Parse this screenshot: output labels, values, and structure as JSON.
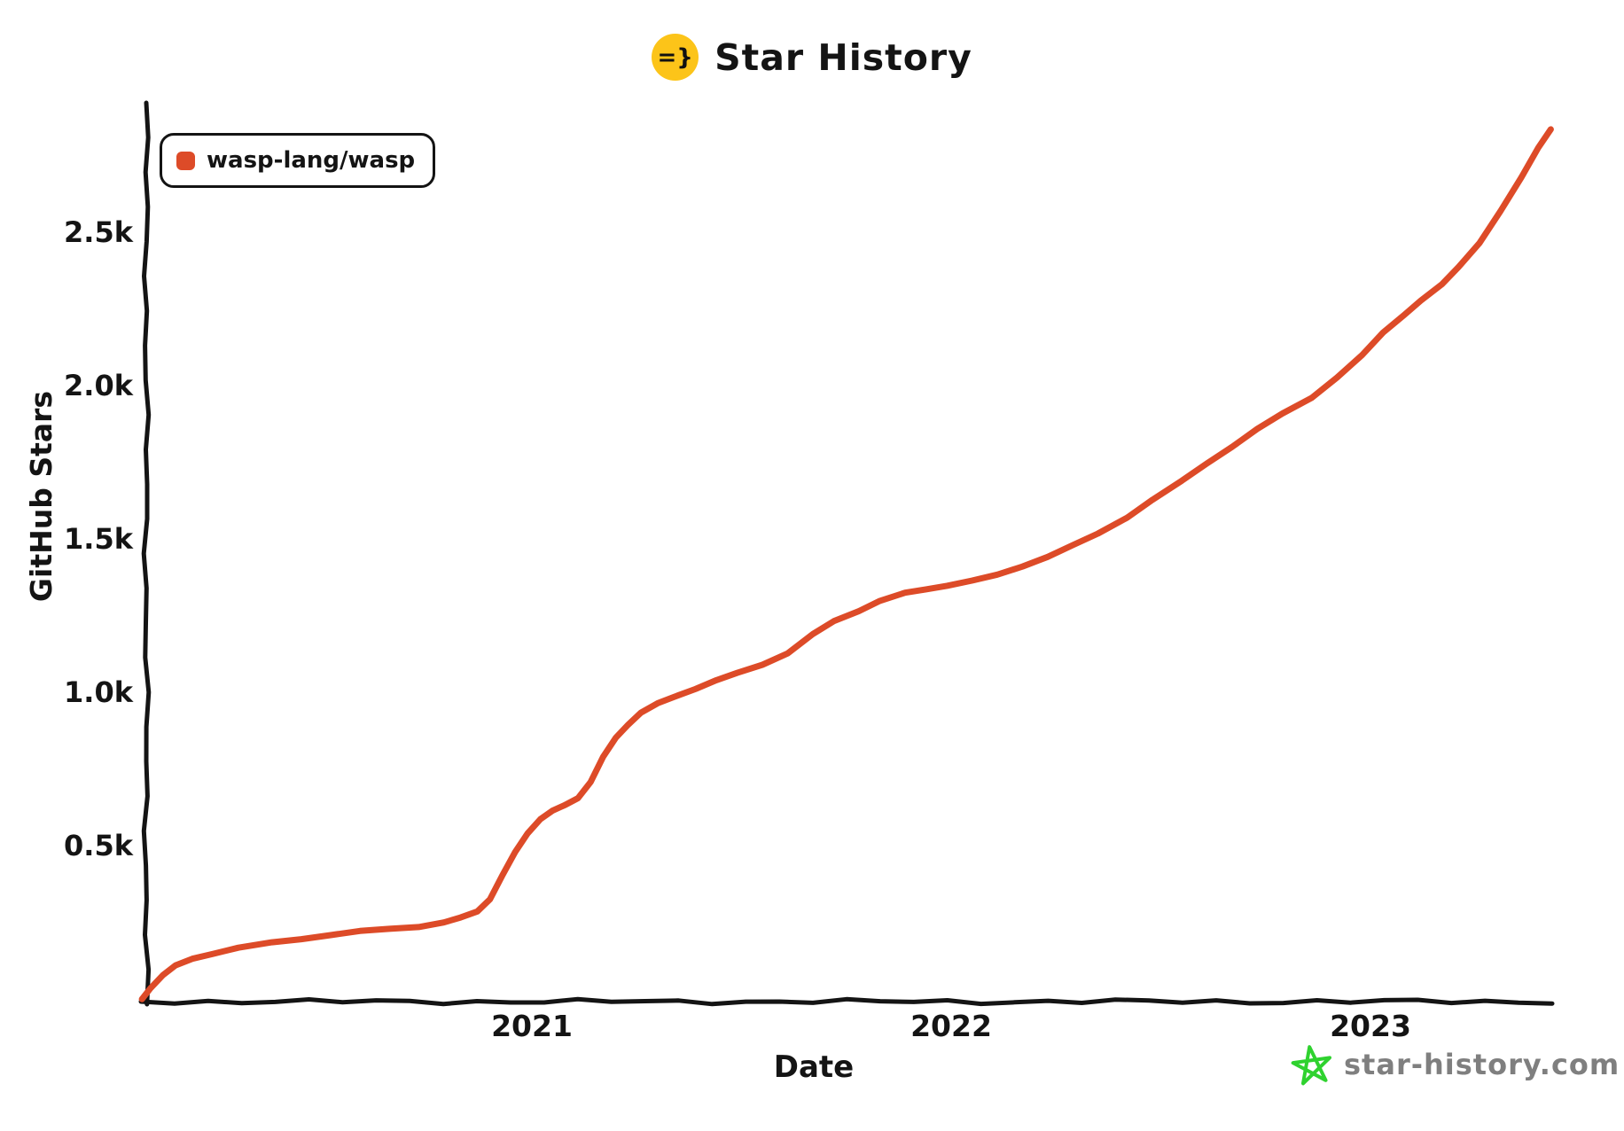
{
  "title": {
    "text": "Star History",
    "logo_text": "=}"
  },
  "legend": {
    "series_label": "wasp-lang/wasp"
  },
  "y_axis": {
    "label": "GitHub Stars",
    "ticks": [
      {
        "label": "0.5k",
        "value": 500
      },
      {
        "label": "1.0k",
        "value": 1000
      },
      {
        "label": "1.5k",
        "value": 1500
      },
      {
        "label": "2.0k",
        "value": 2000
      },
      {
        "label": "2.5k",
        "value": 2500
      }
    ]
  },
  "x_axis": {
    "label": "Date",
    "ticks": [
      {
        "label": "2021",
        "year": 2021
      },
      {
        "label": "2022",
        "year": 2022
      },
      {
        "label": "2023",
        "year": 2023
      }
    ]
  },
  "footer": {
    "site": "star-history.com",
    "icon": "star-doodle-icon"
  },
  "colors": {
    "line": "#dd4b28",
    "logo_bg": "#fcc419",
    "logo_text": "#111111",
    "axis": "#141414",
    "footer_green": "#2fd22f",
    "footer_gray": "#7f7f7f"
  },
  "chart_data": {
    "type": "line",
    "title": "Star History",
    "xlabel": "Date",
    "ylabel": "GitHub Stars",
    "xlim": [
      2020.07,
      2023.47
    ],
    "ylim": [
      0,
      2950
    ],
    "grid": false,
    "legend_position": "top-left",
    "x_ticks": [
      2021,
      2022,
      2023
    ],
    "y_ticks": [
      500,
      1000,
      1500,
      2000,
      2500
    ],
    "series": [
      {
        "name": "wasp-lang/wasp",
        "color": "#dd4b28",
        "points": [
          [
            2020.07,
            2
          ],
          [
            2020.09,
            40
          ],
          [
            2020.12,
            80
          ],
          [
            2020.15,
            110
          ],
          [
            2020.19,
            135
          ],
          [
            2020.24,
            152
          ],
          [
            2020.3,
            168
          ],
          [
            2020.38,
            186
          ],
          [
            2020.45,
            200
          ],
          [
            2020.52,
            212
          ],
          [
            2020.59,
            222
          ],
          [
            2020.66,
            231
          ],
          [
            2020.73,
            240
          ],
          [
            2020.79,
            252
          ],
          [
            2020.83,
            266
          ],
          [
            2020.87,
            289
          ],
          [
            2020.9,
            330
          ],
          [
            2020.93,
            405
          ],
          [
            2020.96,
            480
          ],
          [
            2020.99,
            545
          ],
          [
            2021.02,
            590
          ],
          [
            2021.05,
            615
          ],
          [
            2021.08,
            635
          ],
          [
            2021.11,
            660
          ],
          [
            2021.14,
            710
          ],
          [
            2021.17,
            790
          ],
          [
            2021.2,
            855
          ],
          [
            2021.23,
            900
          ],
          [
            2021.26,
            935
          ],
          [
            2021.3,
            965
          ],
          [
            2021.34,
            990
          ],
          [
            2021.39,
            1015
          ],
          [
            2021.44,
            1040
          ],
          [
            2021.49,
            1065
          ],
          [
            2021.55,
            1095
          ],
          [
            2021.61,
            1130
          ],
          [
            2021.67,
            1190
          ],
          [
            2021.72,
            1235
          ],
          [
            2021.78,
            1270
          ],
          [
            2021.83,
            1300
          ],
          [
            2021.89,
            1325
          ],
          [
            2021.94,
            1340
          ],
          [
            2021.99,
            1352
          ],
          [
            2022.05,
            1365
          ],
          [
            2022.11,
            1385
          ],
          [
            2022.17,
            1415
          ],
          [
            2022.23,
            1445
          ],
          [
            2022.29,
            1480
          ],
          [
            2022.35,
            1520
          ],
          [
            2022.42,
            1575
          ],
          [
            2022.48,
            1630
          ],
          [
            2022.55,
            1690
          ],
          [
            2022.61,
            1750
          ],
          [
            2022.67,
            1805
          ],
          [
            2022.73,
            1860
          ],
          [
            2022.79,
            1910
          ],
          [
            2022.86,
            1965
          ],
          [
            2022.92,
            2030
          ],
          [
            2022.98,
            2100
          ],
          [
            2023.03,
            2175
          ],
          [
            2023.08,
            2235
          ],
          [
            2023.12,
            2280
          ],
          [
            2023.17,
            2330
          ],
          [
            2023.21,
            2390
          ],
          [
            2023.26,
            2470
          ],
          [
            2023.31,
            2570
          ],
          [
            2023.36,
            2680
          ],
          [
            2023.4,
            2780
          ],
          [
            2023.43,
            2840
          ]
        ]
      }
    ]
  }
}
